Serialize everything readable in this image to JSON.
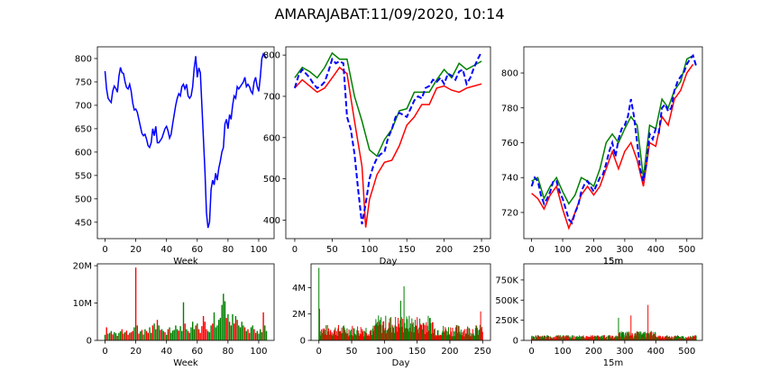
{
  "title": "AMARAJABAT:11/09/2020, 10:14",
  "colors": {
    "price": "#0000ff",
    "high": "#008000",
    "low": "#ff0000",
    "up_volume": "#008000",
    "down_volume": "#ff0000",
    "axes": "#000000"
  },
  "chart_data": [
    {
      "type": "line",
      "panel": "weekly-price",
      "xlabel": "",
      "ylabel": "",
      "xlim": [
        -5,
        110
      ],
      "ylim": [
        415,
        825
      ],
      "xticks": [
        "0",
        "20",
        "40",
        "60",
        "80",
        "100"
      ],
      "yticks": [
        "450",
        "500",
        "550",
        "600",
        "650",
        "700",
        "750",
        "800"
      ],
      "series": [
        {
          "style": "solid",
          "color": "#0000ff",
          "x": [
            0,
            1,
            2,
            3,
            4,
            5,
            6,
            7,
            8,
            9,
            10,
            11,
            12,
            13,
            14,
            15,
            16,
            17,
            18,
            19,
            20,
            21,
            22,
            23,
            24,
            25,
            26,
            27,
            28,
            29,
            30,
            31,
            32,
            33,
            34,
            35,
            36,
            37,
            38,
            39,
            40,
            41,
            42,
            43,
            44,
            45,
            46,
            47,
            48,
            49,
            50,
            51,
            52,
            53,
            54,
            55,
            56,
            57,
            58,
            59,
            60,
            61,
            62,
            63,
            64,
            65,
            66,
            67,
            68,
            69,
            70,
            71,
            72,
            73,
            74,
            75,
            76,
            77,
            78,
            79,
            80,
            81,
            82,
            83,
            84,
            85,
            86,
            87,
            88,
            89,
            90,
            91,
            92,
            93,
            94,
            95,
            96,
            97,
            98,
            99,
            100,
            101,
            102,
            103,
            104,
            105
          ],
          "y": [
            773,
            735,
            715,
            710,
            706,
            730,
            741,
            736,
            728,
            762,
            781,
            770,
            768,
            750,
            738,
            735,
            745,
            730,
            705,
            690,
            692,
            685,
            670,
            655,
            640,
            635,
            638,
            628,
            614,
            610,
            620,
            650,
            635,
            655,
            620,
            620,
            625,
            630,
            640,
            650,
            655,
            645,
            630,
            638,
            660,
            680,
            700,
            715,
            725,
            720,
            740,
            745,
            735,
            745,
            720,
            715,
            720,
            740,
            780,
            805,
            760,
            780,
            770,
            700,
            630,
            560,
            470,
            438,
            450,
            520,
            540,
            530,
            555,
            540,
            565,
            580,
            600,
            610,
            660,
            670,
            650,
            680,
            670,
            700,
            720,
            715,
            740,
            735,
            740,
            745,
            750,
            760,
            740,
            745,
            740,
            730,
            725,
            750,
            760,
            740,
            730,
            760,
            800,
            810,
            805,
            800
          ]
        }
      ]
    },
    {
      "type": "line",
      "panel": "daily-price",
      "xlabel": "Day",
      "ylabel": "",
      "xlim": [
        -12,
        262
      ],
      "ylim": [
        355,
        820
      ],
      "xticks": [
        "0",
        "50",
        "100",
        "150",
        "200",
        "250"
      ],
      "yticks": [
        "400",
        "500",
        "600",
        "700",
        "800"
      ],
      "series": [
        {
          "name_hidden": "high",
          "style": "solid",
          "color": "#008000",
          "x": [
            0,
            10,
            20,
            30,
            40,
            50,
            60,
            70,
            80,
            90,
            100,
            110,
            120,
            130,
            140,
            150,
            160,
            170,
            180,
            190,
            200,
            210,
            220,
            230,
            240,
            250
          ],
          "y": [
            745,
            770,
            760,
            745,
            770,
            805,
            790,
            790,
            700,
            640,
            570,
            555,
            595,
            620,
            665,
            670,
            710,
            710,
            710,
            740,
            765,
            745,
            780,
            765,
            775,
            785
          ]
        },
        {
          "name_hidden": "low",
          "style": "solid",
          "color": "#ff0000",
          "x": [
            0,
            10,
            20,
            30,
            40,
            50,
            60,
            70,
            80,
            90,
            95,
            100,
            110,
            120,
            130,
            140,
            150,
            160,
            170,
            180,
            190,
            200,
            210,
            220,
            230,
            240,
            250
          ],
          "y": [
            720,
            740,
            725,
            710,
            720,
            745,
            770,
            755,
            640,
            530,
            382,
            450,
            510,
            540,
            545,
            580,
            630,
            650,
            680,
            680,
            720,
            725,
            715,
            710,
            720,
            725,
            730
          ]
        },
        {
          "name_hidden": "close",
          "style": "dashed",
          "color": "#0000ff",
          "x": [
            0,
            5,
            10,
            15,
            20,
            25,
            30,
            35,
            40,
            45,
            50,
            55,
            60,
            65,
            70,
            75,
            80,
            85,
            90,
            95,
            100,
            105,
            110,
            115,
            120,
            125,
            130,
            135,
            140,
            145,
            150,
            155,
            160,
            165,
            170,
            175,
            180,
            185,
            190,
            195,
            200,
            205,
            210,
            215,
            220,
            225,
            230,
            235,
            240,
            245,
            250
          ],
          "y": [
            720,
            750,
            765,
            755,
            745,
            730,
            720,
            725,
            735,
            760,
            790,
            780,
            785,
            780,
            650,
            620,
            560,
            470,
            390,
            440,
            500,
            530,
            550,
            560,
            565,
            600,
            620,
            650,
            660,
            655,
            650,
            670,
            690,
            700,
            695,
            720,
            725,
            740,
            735,
            745,
            730,
            755,
            750,
            740,
            760,
            765,
            730,
            745,
            770,
            790,
            808
          ]
        }
      ]
    },
    {
      "type": "line",
      "panel": "intraday-price",
      "xlabel": "15m",
      "ylabel": "",
      "xlim": [
        -25,
        550
      ],
      "ylim": [
        705,
        815
      ],
      "xticks": [
        "0",
        "100",
        "200",
        "300",
        "400",
        "500"
      ],
      "yticks": [
        "720",
        "740",
        "760",
        "780",
        "800"
      ],
      "series": [
        {
          "name_hidden": "high",
          "style": "solid",
          "color": "#008000",
          "x": [
            0,
            20,
            40,
            60,
            80,
            100,
            120,
            140,
            160,
            180,
            200,
            220,
            240,
            260,
            280,
            300,
            320,
            340,
            360,
            380,
            400,
            420,
            440,
            460,
            480,
            500,
            520
          ],
          "y": [
            738,
            740,
            728,
            735,
            740,
            732,
            725,
            730,
            740,
            738,
            735,
            745,
            760,
            765,
            760,
            768,
            775,
            770,
            740,
            770,
            768,
            785,
            780,
            790,
            795,
            808,
            810
          ]
        },
        {
          "name_hidden": "low",
          "style": "solid",
          "color": "#ff0000",
          "x": [
            0,
            20,
            40,
            60,
            80,
            100,
            120,
            140,
            160,
            180,
            200,
            220,
            240,
            260,
            280,
            300,
            320,
            340,
            360,
            380,
            400,
            420,
            440,
            460,
            480,
            500,
            520
          ],
          "y": [
            731,
            728,
            722,
            730,
            735,
            722,
            711,
            720,
            730,
            735,
            730,
            735,
            745,
            755,
            745,
            755,
            760,
            750,
            735,
            760,
            758,
            775,
            770,
            785,
            790,
            800,
            805
          ]
        },
        {
          "name_hidden": "close",
          "style": "dashed",
          "color": "#0000ff",
          "x": [
            0,
            10,
            20,
            30,
            40,
            50,
            60,
            70,
            80,
            90,
            100,
            110,
            120,
            130,
            140,
            150,
            160,
            170,
            180,
            190,
            200,
            210,
            220,
            230,
            240,
            250,
            260,
            270,
            280,
            290,
            300,
            310,
            320,
            330,
            340,
            350,
            360,
            370,
            380,
            390,
            400,
            410,
            420,
            430,
            440,
            450,
            460,
            470,
            480,
            490,
            500,
            510,
            520,
            530
          ],
          "y": [
            735,
            740,
            738,
            730,
            725,
            728,
            732,
            738,
            738,
            732,
            728,
            722,
            716,
            714,
            720,
            724,
            732,
            736,
            738,
            735,
            732,
            736,
            740,
            742,
            748,
            755,
            760,
            752,
            762,
            768,
            770,
            775,
            785,
            775,
            760,
            745,
            738,
            748,
            765,
            762,
            768,
            766,
            780,
            782,
            778,
            780,
            790,
            795,
            798,
            800,
            805,
            808,
            810,
            804
          ]
        }
      ]
    },
    {
      "type": "bar",
      "panel": "weekly-volume",
      "xlabel": "Week",
      "ylabel": "",
      "xlim": [
        -5,
        110
      ],
      "ylim": [
        0,
        20500000
      ],
      "yticks": [
        "0",
        "10M",
        "20M"
      ],
      "xticks": [
        "0",
        "20",
        "40",
        "60",
        "80",
        "100"
      ],
      "x": [
        0,
        1,
        2,
        3,
        4,
        5,
        6,
        7,
        8,
        9,
        10,
        11,
        12,
        13,
        14,
        15,
        16,
        17,
        18,
        19,
        20,
        21,
        22,
        23,
        24,
        25,
        26,
        27,
        28,
        29,
        30,
        31,
        32,
        33,
        34,
        35,
        36,
        37,
        38,
        39,
        40,
        41,
        42,
        43,
        44,
        45,
        46,
        47,
        48,
        49,
        50,
        51,
        52,
        53,
        54,
        55,
        56,
        57,
        58,
        59,
        60,
        61,
        62,
        63,
        64,
        65,
        66,
        67,
        68,
        69,
        70,
        71,
        72,
        73,
        74,
        75,
        76,
        77,
        78,
        79,
        80,
        81,
        82,
        83,
        84,
        85,
        86,
        87,
        88,
        89,
        90,
        91,
        92,
        93,
        94,
        95,
        96,
        97,
        98,
        99,
        100,
        101,
        102,
        103,
        104,
        105
      ],
      "values": [
        1.5,
        3.5,
        1.8,
        2.0,
        2.5,
        1.6,
        2.2,
        1.9,
        1.2,
        2.0,
        2.4,
        3.0,
        1.8,
        2.2,
        2.6,
        1.5,
        2.0,
        2.2,
        2.5,
        3.5,
        19.5,
        4.0,
        1.8,
        2.4,
        2.8,
        1.6,
        3.0,
        2.5,
        2.0,
        3.5,
        2.0,
        4.0,
        4.5,
        3.0,
        5.5,
        4.0,
        2.8,
        3.0,
        2.5,
        2.2,
        1.5,
        3.0,
        3.5,
        2.0,
        2.6,
        2.8,
        4.0,
        3.0,
        2.6,
        3.8,
        2.5,
        10.2,
        4.5,
        3.0,
        2.5,
        2.0,
        3.5,
        5.0,
        3.0,
        4.0,
        4.5,
        3.0,
        2.0,
        3.8,
        6.5,
        5.0,
        3.0,
        2.5,
        2.2,
        4.0,
        4.5,
        7.5,
        3.5,
        4.0,
        5.5,
        6.0,
        9.5,
        12.5,
        10.5,
        6.0,
        7.0,
        5.0,
        4.0,
        7.0,
        4.5,
        6.5,
        5.5,
        4.0,
        3.5,
        5.0,
        4.0,
        3.5,
        2.5,
        3.0,
        2.0,
        3.5,
        4.0,
        3.0,
        2.0,
        2.5,
        1.8,
        3.0,
        2.2,
        7.5,
        4.0,
        2.5
      ],
      "unit": "millions",
      "direction": [
        "u",
        "d",
        "u",
        "d",
        "u",
        "d",
        "u",
        "u",
        "d",
        "u",
        "u",
        "d",
        "d",
        "u",
        "d",
        "d",
        "u",
        "d",
        "d",
        "u",
        "d",
        "u",
        "d",
        "u",
        "d",
        "u",
        "u",
        "d",
        "d",
        "u",
        "u",
        "d",
        "u",
        "u",
        "d",
        "u",
        "d",
        "u",
        "u",
        "d",
        "u",
        "d",
        "u",
        "u",
        "u",
        "u",
        "u",
        "u",
        "d",
        "u",
        "u",
        "u",
        "d",
        "u",
        "d",
        "u",
        "u",
        "u",
        "u",
        "d",
        "u",
        "d",
        "d",
        "d",
        "d",
        "d",
        "d",
        "u",
        "u",
        "u",
        "d",
        "u",
        "u",
        "u",
        "u",
        "u",
        "u",
        "u",
        "u",
        "d",
        "u",
        "d",
        "u",
        "u",
        "d",
        "u",
        "d",
        "u",
        "u",
        "u",
        "u",
        "d",
        "u",
        "d",
        "d",
        "u",
        "u",
        "d",
        "d",
        "u",
        "u",
        "u",
        "u",
        "d",
        "u",
        "u"
      ]
    },
    {
      "type": "bar",
      "panel": "daily-volume",
      "xlabel": "Day",
      "ylabel": "",
      "xlim": [
        -12,
        262
      ],
      "ylim": [
        0,
        5800000
      ],
      "yticks": [
        "0",
        "2M",
        "4M"
      ],
      "xticks": [
        "0",
        "50",
        "100",
        "150",
        "200",
        "250"
      ],
      "unit": "millions",
      "generator": "daily"
    },
    {
      "type": "bar",
      "panel": "intraday-volume",
      "xlabel": "15m",
      "ylabel": "",
      "xlim": [
        -25,
        550
      ],
      "ylim": [
        0,
        950000
      ],
      "yticks": [
        "0",
        "250K",
        "500K",
        "750K"
      ],
      "xticks": [
        "0",
        "100",
        "200",
        "300",
        "400",
        "500"
      ],
      "unit": "thousands",
      "generator": "intraday"
    }
  ]
}
